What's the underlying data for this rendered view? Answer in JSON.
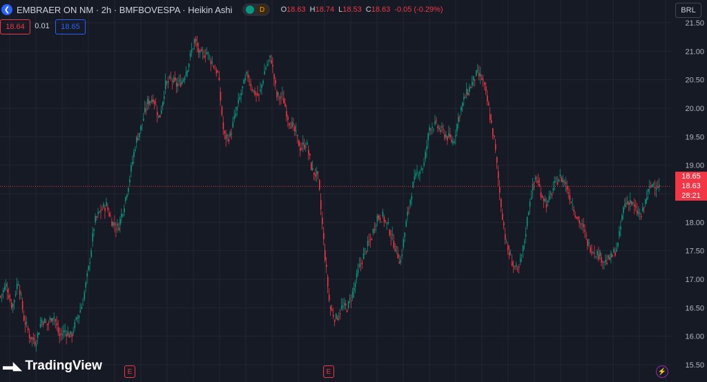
{
  "header": {
    "symbol_title": "EMBRAER ON NM · 2h · BMFBOVESPA · Heikin Ashi",
    "badge_d": "D",
    "ohlc": {
      "o_label": "O",
      "o_value": "18.63",
      "h_label": "H",
      "h_value": "18.74",
      "l_label": "L",
      "l_value": "18.53",
      "c_label": "C",
      "c_value": "18.63",
      "change": "-0.05 (-0.29%)"
    }
  },
  "trade": {
    "bid": "18.64",
    "spread": "0.01",
    "ask": "18.65"
  },
  "currency_button": "BRL",
  "axis": {
    "ticks": [
      "21.50",
      "21.00",
      "20.50",
      "20.00",
      "19.50",
      "19.00",
      "18.50",
      "18.00",
      "17.50",
      "17.00",
      "16.50",
      "16.00",
      "15.50"
    ],
    "label_ask": "18.65",
    "label_last": "18.63",
    "label_countdown": "28:21"
  },
  "brand": "TradingView",
  "events": {
    "earnings_label": "E",
    "bolt_label": "⚡"
  },
  "colors": {
    "up": "#089981",
    "down": "#f23645",
    "background": "#161a25",
    "grid": "#232632",
    "last_line": "#f23645"
  },
  "chart_data": {
    "type": "candlestick",
    "style": "Heikin Ashi",
    "ylim": [
      15.5,
      21.5
    ],
    "last_price": 18.63,
    "path": [
      16.7,
      16.9,
      16.5,
      17.0,
      16.3,
      16.0,
      15.9,
      16.3,
      16.2,
      16.4,
      16.0,
      16.1,
      16.0,
      16.3,
      16.6,
      17.2,
      18.0,
      18.2,
      18.3,
      18.0,
      17.9,
      18.3,
      18.8,
      19.4,
      19.7,
      20.1,
      20.2,
      19.8,
      20.4,
      20.5,
      20.4,
      20.5,
      20.8,
      21.2,
      20.9,
      21.0,
      20.8,
      20.6,
      19.5,
      19.5,
      19.9,
      20.3,
      20.6,
      20.3,
      20.2,
      20.7,
      20.9,
      20.2,
      20.2,
      19.8,
      19.6,
      19.3,
      19.4,
      18.9,
      18.8,
      17.6,
      16.5,
      16.3,
      16.5,
      16.5,
      16.8,
      17.2,
      17.5,
      17.7,
      18.1,
      18.1,
      17.9,
      17.6,
      17.3,
      18.0,
      18.6,
      18.9,
      19.0,
      19.7,
      19.7,
      19.6,
      19.5,
      19.4,
      19.9,
      20.2,
      20.4,
      20.6,
      20.5,
      20.0,
      19.4,
      18.4,
      17.6,
      17.3,
      17.1,
      17.6,
      18.4,
      18.8,
      18.5,
      18.3,
      18.6,
      18.8,
      18.7,
      18.4,
      18.1,
      17.9,
      17.6,
      17.5,
      17.4,
      17.3,
      17.4,
      17.6,
      18.3,
      18.4,
      18.2,
      18.1,
      18.5,
      18.7,
      18.63
    ]
  }
}
